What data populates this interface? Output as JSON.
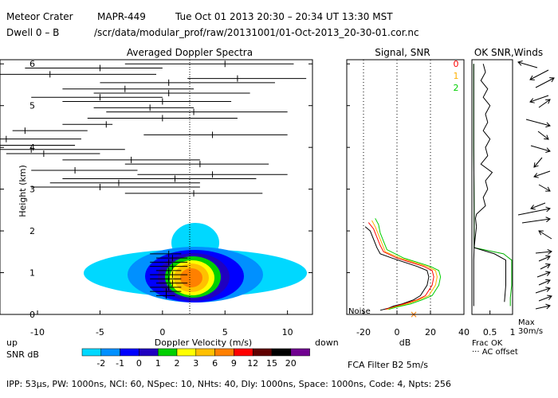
{
  "header": {
    "station": "Meteor Crater",
    "radar": "MAPR-449",
    "datetime": "Tue Oct 01 2013 20:30 – 20:34 UT 13:30 MST",
    "dwell": "Dwell 0 – B",
    "path": "/scr/data/modular_prof/raw/20131001/01-Oct-2013_20-30-01.cor.nc"
  },
  "footer": {
    "params": "IPP: 53µs, PW: 1000ns, NCI: 60, NSpec: 10, NHts: 40, Dly: 1000ns, Space: 1000ns, Code: 4, Npts: 256",
    "fca": "FCA Filter B2 5m/s"
  },
  "colorbar": {
    "up_label": "up",
    "down_label": "down",
    "title": "SNR dB",
    "ticks": [
      "-2",
      "-1",
      "0",
      "1",
      "2",
      "3",
      "6",
      "9",
      "12",
      "15",
      "20"
    ],
    "colors": [
      "#00d8ff",
      "#0090ff",
      "#0000ff",
      "#2000c0",
      "#00d000",
      "#ffff00",
      "#ffc000",
      "#ff8000",
      "#ff0000",
      "#600000",
      "#000000",
      "#700090"
    ]
  },
  "chart_data": [
    {
      "type": "heatmap",
      "title": "Averaged Doppler Spectra",
      "xlabel": "Doppler Velocity (m/s)",
      "ylabel": "Height (km)",
      "xlim": [
        -13,
        12
      ],
      "ylim": [
        0,
        6.1
      ],
      "xticks": [
        -10,
        -5,
        0,
        5,
        10
      ],
      "yticks": [
        0,
        1,
        2,
        3,
        4,
        5,
        6
      ],
      "segments": [
        {
          "h": 6.0,
          "lo": -3,
          "hi": 10.5,
          "mid": 5
        },
        {
          "h": 5.9,
          "lo": -11,
          "hi": 0,
          "mid": -5
        },
        {
          "h": 5.75,
          "lo": -13,
          "hi": -0.5,
          "mid": -9
        },
        {
          "h": 5.65,
          "lo": 2,
          "hi": 11.5,
          "mid": 6
        },
        {
          "h": 5.55,
          "lo": -5,
          "hi": 9,
          "mid": 0.5
        },
        {
          "h": 5.4,
          "lo": -8,
          "hi": 2.5,
          "mid": -3
        },
        {
          "h": 5.3,
          "lo": -5.5,
          "hi": 7,
          "mid": 0.5
        },
        {
          "h": 5.2,
          "lo": -10.5,
          "hi": 0,
          "mid": -5
        },
        {
          "h": 5.1,
          "lo": -8,
          "hi": 5.5,
          "mid": 0
        },
        {
          "h": 4.95,
          "lo": -5.5,
          "hi": 2.5,
          "mid": -1
        },
        {
          "h": 4.85,
          "lo": -4.5,
          "hi": 10,
          "mid": 2.5
        },
        {
          "h": 4.7,
          "lo": -6,
          "hi": 6,
          "mid": 0
        },
        {
          "h": 4.55,
          "lo": -8,
          "hi": -4,
          "mid": -4.5
        },
        {
          "h": 4.4,
          "lo": -12,
          "hi": -6,
          "mid": -11
        },
        {
          "h": 4.3,
          "lo": -1.5,
          "hi": 10,
          "mid": 4
        },
        {
          "h": 4.2,
          "lo": -13,
          "hi": -6.5,
          "mid": -12.5
        },
        {
          "h": 4.05,
          "lo": -13,
          "hi": -7,
          "mid": -13
        },
        {
          "h": 3.95,
          "lo": -13,
          "hi": -3,
          "mid": -10.5
        },
        {
          "h": 3.85,
          "lo": -12.5,
          "hi": -5,
          "mid": -9.5
        },
        {
          "h": 3.7,
          "lo": -8,
          "hi": 3,
          "mid": -2.5
        },
        {
          "h": 3.6,
          "lo": -3,
          "hi": 8.5,
          "mid": 3
        },
        {
          "h": 3.45,
          "lo": -10.5,
          "hi": -2,
          "mid": -7
        },
        {
          "h": 3.35,
          "lo": -2,
          "hi": 10,
          "mid": 4
        },
        {
          "h": 3.25,
          "lo": -8,
          "hi": 7.5,
          "mid": 1
        },
        {
          "h": 3.15,
          "lo": -9,
          "hi": 3,
          "mid": -3.5
        },
        {
          "h": 3.05,
          "lo": -10.5,
          "hi": 3,
          "mid": -5
        },
        {
          "h": 2.9,
          "lo": -3,
          "hi": 8,
          "mid": 2.5
        },
        {
          "h": 1.45,
          "lo": -1,
          "hi": 1.5,
          "mid": 0.5
        },
        {
          "h": 1.35,
          "lo": -0.5,
          "hi": 2,
          "mid": 0.8
        },
        {
          "h": 1.25,
          "lo": -1,
          "hi": 2,
          "mid": 0.5
        },
        {
          "h": 1.15,
          "lo": -1,
          "hi": 2,
          "mid": 0.8
        },
        {
          "h": 1.05,
          "lo": -0.5,
          "hi": 1.5,
          "mid": 0.5
        },
        {
          "h": 0.95,
          "lo": -1,
          "hi": 2,
          "mid": 0.8
        },
        {
          "h": 0.85,
          "lo": -1,
          "hi": 1.5,
          "mid": 0.5
        },
        {
          "h": 0.75,
          "lo": -0.5,
          "hi": 2,
          "mid": 0.8
        },
        {
          "h": 0.65,
          "lo": -1,
          "hi": 1.5,
          "mid": 0.5
        },
        {
          "h": 0.55,
          "lo": -1,
          "hi": 1.5,
          "mid": 0.3
        },
        {
          "h": 0.45,
          "lo": -0.5,
          "hi": 1,
          "mid": 0.3
        }
      ]
    },
    {
      "type": "line",
      "title": "Signal, SNR",
      "xlabel": "dB",
      "xlim": [
        -30,
        40
      ],
      "ylim": [
        0,
        6.1
      ],
      "xticks": [
        -20,
        0,
        20,
        40
      ],
      "noise_label": "Noise",
      "legend": [
        {
          "label": "0",
          "color": "#ff0000"
        },
        {
          "label": "1",
          "color": "#ffb000"
        },
        {
          "label": "2",
          "color": "#00d000"
        }
      ],
      "series": [
        {
          "name": "signal",
          "color": "#000000",
          "x": [
            -19,
            -16,
            -14,
            -12,
            -10,
            -3,
            12,
            18,
            19,
            18,
            14,
            10,
            3,
            -2,
            -5,
            -10
          ],
          "y": [
            2.1,
            2.0,
            1.8,
            1.6,
            1.45,
            1.35,
            1.15,
            1.05,
            0.9,
            0.7,
            0.45,
            0.35,
            0.25,
            0.2,
            0.15,
            0.1
          ]
        },
        {
          "name": "0",
          "color": "#ff0000",
          "x": [
            -17,
            -14,
            -12,
            -10,
            -8,
            0,
            16,
            21,
            22,
            21,
            17,
            12,
            4,
            -2,
            -7
          ],
          "y": [
            2.2,
            2.05,
            1.85,
            1.65,
            1.5,
            1.35,
            1.15,
            1.05,
            0.9,
            0.7,
            0.45,
            0.35,
            0.25,
            0.18,
            0.12
          ]
        },
        {
          "name": "1",
          "color": "#ffb000",
          "x": [
            -15,
            -13,
            -11,
            -9,
            -7,
            2,
            18,
            23,
            24,
            23,
            19,
            13,
            6,
            -1,
            -6
          ],
          "y": [
            2.25,
            2.1,
            1.9,
            1.7,
            1.5,
            1.35,
            1.15,
            1.05,
            0.9,
            0.7,
            0.45,
            0.35,
            0.25,
            0.18,
            0.12
          ]
        },
        {
          "name": "2",
          "color": "#00d000",
          "x": [
            -13,
            -11,
            -10,
            -8,
            -6,
            4,
            20,
            25,
            26,
            25,
            21,
            15,
            8,
            0,
            -5
          ],
          "y": [
            2.3,
            2.15,
            1.95,
            1.75,
            1.55,
            1.35,
            1.15,
            1.05,
            0.9,
            0.7,
            0.45,
            0.35,
            0.25,
            0.18,
            0.12
          ]
        }
      ]
    },
    {
      "type": "line",
      "title": "OK SNR,Winds",
      "xlabel": "Frac OK",
      "footnote": "··· AC offset",
      "xlim": [
        0.1,
        1.0
      ],
      "ylim": [
        0,
        6.1
      ],
      "xticks": [
        "0.5",
        "1"
      ],
      "series": [
        {
          "name": "frac-ok",
          "color": "#00b000",
          "x": [
            0.14,
            0.14,
            0.15,
            0.15,
            0.8,
            0.98,
            0.98,
            0.98,
            0.98,
            0.95,
            0.95
          ],
          "y": [
            6.0,
            4.0,
            2.5,
            1.6,
            1.45,
            1.3,
            1.1,
            0.9,
            0.7,
            0.4,
            0.2
          ]
        },
        {
          "name": "frac-ok-2",
          "color": "#000000",
          "x": [
            0.14,
            0.14,
            0.15,
            0.15,
            0.6,
            0.85,
            0.85,
            0.85,
            0.82
          ],
          "y": [
            6.0,
            4.0,
            2.5,
            1.6,
            1.45,
            1.3,
            1.1,
            0.7,
            0.3
          ]
        },
        {
          "name": "ac-offset",
          "color": "#000000",
          "x": [
            0.35,
            0.4,
            0.3,
            0.45,
            0.35,
            0.5,
            0.4,
            0.45,
            0.35,
            0.5,
            0.4,
            0.45,
            0.3,
            0.55,
            0.4,
            0.45,
            0.35,
            0.4,
            0.3,
            0.2,
            0.18,
            0.2,
            0.18,
            0.15,
            0.14,
            0.14,
            0.14
          ],
          "y": [
            6.0,
            5.8,
            5.6,
            5.4,
            5.2,
            5.0,
            4.8,
            4.6,
            4.4,
            4.2,
            4.0,
            3.8,
            3.6,
            3.4,
            3.2,
            3.0,
            2.8,
            2.6,
            2.5,
            2.4,
            2.3,
            2.1,
            1.9,
            1.6,
            1.3,
            0.8,
            0.2
          ]
        }
      ],
      "wind_scale_label": "Max",
      "wind_scale": "30m/s"
    }
  ]
}
